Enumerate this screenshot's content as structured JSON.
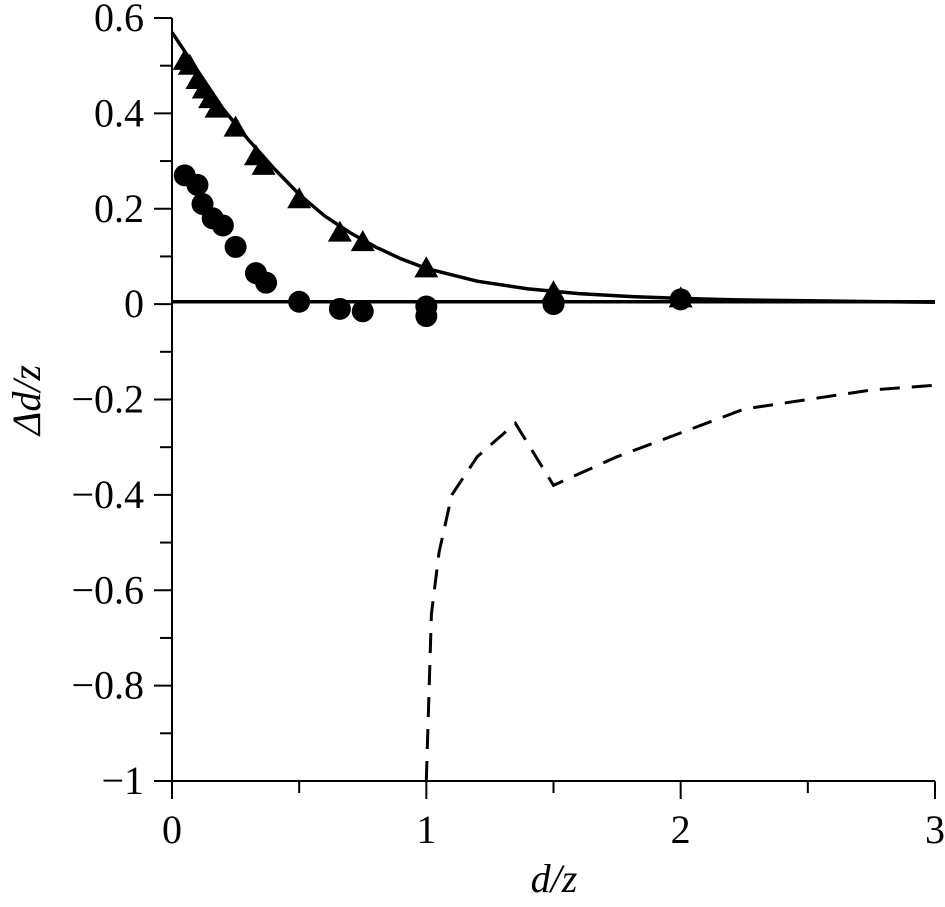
{
  "chart_data": {
    "type": "scatter",
    "title": "",
    "xlabel": "d/z",
    "ylabel": "Δd/z",
    "xlim": [
      0,
      3
    ],
    "ylim": [
      -1,
      0.6
    ],
    "grid": false,
    "x_ticks": [
      {
        "value": 0,
        "label": "0"
      },
      {
        "value": 1,
        "label": "1"
      },
      {
        "value": 2,
        "label": "2"
      },
      {
        "value": 3,
        "label": "3"
      }
    ],
    "x_minor_ticks": [
      0.5,
      1.5,
      2.5
    ],
    "y_ticks": [
      {
        "value": 0.6,
        "label": "0.6"
      },
      {
        "value": 0.4,
        "label": "0.4"
      },
      {
        "value": 0.2,
        "label": "0.2"
      },
      {
        "value": 0,
        "label": "0"
      },
      {
        "value": -0.2,
        "label": "−0.2"
      },
      {
        "value": -0.4,
        "label": "−0.4"
      },
      {
        "value": -0.6,
        "label": "−0.6"
      },
      {
        "value": -0.8,
        "label": "−0.8"
      },
      {
        "value": -1,
        "label": "−1"
      }
    ],
    "y_minor_ticks": [
      0.5,
      0.3,
      0.1,
      -0.1,
      -0.3,
      -0.5,
      -0.7,
      -0.9
    ],
    "series": [
      {
        "marker": "triangle",
        "color": "#000000",
        "points": [
          [
            0.05,
            0.51
          ],
          [
            0.07,
            0.5
          ],
          [
            0.1,
            0.47
          ],
          [
            0.125,
            0.45
          ],
          [
            0.15,
            0.43
          ],
          [
            0.175,
            0.41
          ],
          [
            0.25,
            0.37
          ],
          [
            0.33,
            0.31
          ],
          [
            0.36,
            0.29
          ],
          [
            0.5,
            0.22
          ],
          [
            0.66,
            0.15
          ],
          [
            0.75,
            0.13
          ],
          [
            1.0,
            0.075
          ],
          [
            1.5,
            0.025
          ],
          [
            2.0,
            0.012
          ]
        ]
      },
      {
        "marker": "circle",
        "color": "#000000",
        "points": [
          [
            0.05,
            0.27
          ],
          [
            0.1,
            0.25
          ],
          [
            0.12,
            0.21
          ],
          [
            0.16,
            0.18
          ],
          [
            0.2,
            0.165
          ],
          [
            0.25,
            0.12
          ],
          [
            0.33,
            0.065
          ],
          [
            0.37,
            0.045
          ],
          [
            0.5,
            0.005
          ],
          [
            0.66,
            -0.01
          ],
          [
            0.75,
            -0.015
          ],
          [
            1.0,
            -0.005
          ],
          [
            1.0,
            -0.025
          ],
          [
            1.5,
            0.0
          ],
          [
            2.0,
            0.01
          ]
        ]
      },
      {
        "line": "solid",
        "color": "#000000",
        "x": [
          0,
          0.1,
          0.2,
          0.3,
          0.4,
          0.5,
          0.6,
          0.7,
          0.8,
          0.9,
          1.0,
          1.2,
          1.4,
          1.6,
          1.8,
          2.0,
          2.2,
          2.5,
          2.8,
          3.0
        ],
        "y": [
          0.57,
          0.49,
          0.41,
          0.345,
          0.285,
          0.23,
          0.185,
          0.15,
          0.12,
          0.095,
          0.075,
          0.048,
          0.032,
          0.022,
          0.016,
          0.012,
          0.009,
          0.007,
          0.005,
          0.004
        ]
      },
      {
        "line": "solid",
        "color": "#000000",
        "x": [
          0,
          3
        ],
        "y": [
          0.005,
          0.005
        ]
      },
      {
        "line": "dashed",
        "color": "#000000",
        "x": [
          1.0,
          1.02,
          1.05,
          1.1,
          1.2,
          1.35,
          1.5,
          1.75,
          2.0,
          2.25,
          2.5,
          2.75,
          3.0
        ],
        "y": [
          -1.0,
          -0.65,
          -0.52,
          -0.4,
          -0.32,
          -0.25,
          -0.38,
          -0.32,
          -0.27,
          -0.22,
          -0.2,
          -0.18,
          -0.17
        ]
      }
    ]
  }
}
